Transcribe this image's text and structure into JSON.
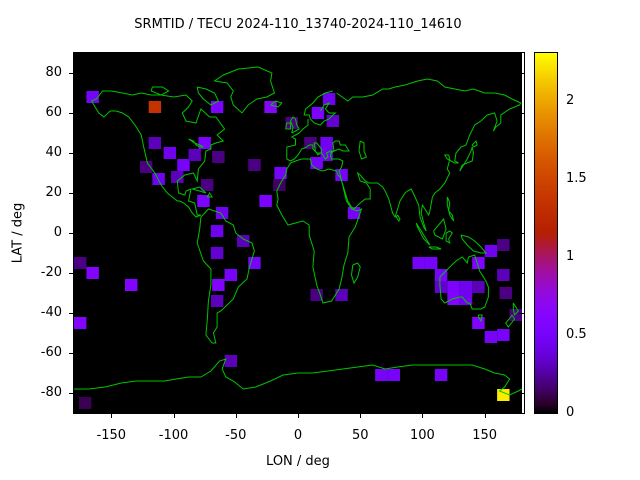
{
  "title": "SRMTID / TECU 2024-110_13740-2024-110_14610",
  "axes": {
    "x_label": "LON / deg",
    "y_label": "LAT / deg",
    "x_ticks": [
      -150,
      -100,
      -50,
      0,
      50,
      100,
      150
    ],
    "y_ticks": [
      80,
      60,
      40,
      20,
      0,
      -20,
      -40,
      -60,
      -80
    ]
  },
  "colorbar": {
    "tick_labels": [
      "0",
      "0.5",
      "1",
      "1.5",
      "2"
    ],
    "tick_values": [
      0,
      0.5,
      1,
      1.5,
      2
    ],
    "min": 0,
    "max": 2.31
  },
  "colors": {
    "page_bg": "#ffffff",
    "plot_bg": "#000000",
    "coastline": "#00c400",
    "text": "#000000"
  },
  "chart_data": {
    "type": "heatmap",
    "title": "SRMTID / TECU 2024-110_13740-2024-110_14610",
    "xlabel": "LON / deg",
    "ylabel": "LAT / deg",
    "xlim": [
      -180,
      180
    ],
    "ylim": [
      -90,
      90
    ],
    "grid": false,
    "legend_position": "right-colorbar",
    "colorbar_range": [
      0,
      2.31
    ],
    "palette": "gnuplot pm3d rgbformulae 7,5,15 (black-violet-red-orange-yellow)",
    "cell_size_deg": {
      "lon": 10,
      "lat": 6
    },
    "cells": [
      {
        "lon": -165,
        "lat": 68,
        "value": 0.5
      },
      {
        "lon": -115,
        "lat": 63,
        "value": 1.35
      },
      {
        "lon": -65,
        "lat": 63,
        "value": 0.55
      },
      {
        "lon": -22,
        "lat": 63,
        "value": 0.65
      },
      {
        "lon": -5,
        "lat": 55,
        "value": 0.2
      },
      {
        "lon": -115,
        "lat": 45,
        "value": 0.3
      },
      {
        "lon": -122,
        "lat": 33,
        "value": 0.2
      },
      {
        "lon": -103,
        "lat": 40,
        "value": 0.45
      },
      {
        "lon": -92,
        "lat": 34,
        "value": 0.5
      },
      {
        "lon": -75,
        "lat": 45,
        "value": 0.55
      },
      {
        "lon": -83,
        "lat": 39,
        "value": 0.3
      },
      {
        "lon": -64,
        "lat": 38,
        "value": 0.2
      },
      {
        "lon": -112,
        "lat": 27,
        "value": 0.45
      },
      {
        "lon": -97,
        "lat": 28,
        "value": 0.3
      },
      {
        "lon": -73,
        "lat": 24,
        "value": 0.2
      },
      {
        "lon": -76,
        "lat": 16,
        "value": 0.55
      },
      {
        "lon": -61,
        "lat": 10,
        "value": 0.45
      },
      {
        "lon": -35,
        "lat": 34,
        "value": 0.2
      },
      {
        "lon": -14,
        "lat": 30,
        "value": 0.5
      },
      {
        "lon": -15,
        "lat": 24,
        "value": 0.15
      },
      {
        "lon": -26,
        "lat": 16,
        "value": 0.55
      },
      {
        "lon": 25,
        "lat": 67,
        "value": 0.45
      },
      {
        "lon": 16,
        "lat": 60,
        "value": 0.55
      },
      {
        "lon": 28,
        "lat": 56,
        "value": 0.35
      },
      {
        "lon": 10,
        "lat": 45,
        "value": 0.2
      },
      {
        "lon": 23,
        "lat": 45,
        "value": 0.45
      },
      {
        "lon": 23,
        "lat": 39,
        "value": 0.45
      },
      {
        "lon": 15,
        "lat": 35,
        "value": 0.5
      },
      {
        "lon": 35,
        "lat": 29,
        "value": 0.5
      },
      {
        "lon": 45,
        "lat": 10,
        "value": 0.5
      },
      {
        "lon": -65,
        "lat": 1,
        "value": 0.45
      },
      {
        "lon": -44,
        "lat": -4,
        "value": 0.3
      },
      {
        "lon": -65,
        "lat": -10,
        "value": 0.35
      },
      {
        "lon": -35,
        "lat": -15,
        "value": 0.5
      },
      {
        "lon": -175,
        "lat": -15,
        "value": 0.2
      },
      {
        "lon": -165,
        "lat": -20,
        "value": 0.6
      },
      {
        "lon": -134,
        "lat": -26,
        "value": 0.6
      },
      {
        "lon": -54,
        "lat": -21,
        "value": 0.5
      },
      {
        "lon": -64,
        "lat": -26,
        "value": 0.6
      },
      {
        "lon": -65,
        "lat": -34,
        "value": 0.3
      },
      {
        "lon": -175,
        "lat": -45,
        "value": 0.6
      },
      {
        "lon": -54,
        "lat": -64,
        "value": 0.3
      },
      {
        "lon": -171,
        "lat": -85,
        "value": 0.12
      },
      {
        "lon": 15,
        "lat": -31,
        "value": 0.2
      },
      {
        "lon": 35,
        "lat": -31,
        "value": 0.3
      },
      {
        "lon": 97,
        "lat": -15,
        "value": 0.5
      },
      {
        "lon": 107,
        "lat": -15,
        "value": 0.5
      },
      {
        "lon": 115,
        "lat": -21,
        "value": 0.5
      },
      {
        "lon": 145,
        "lat": -15,
        "value": 0.6
      },
      {
        "lon": 155,
        "lat": -9,
        "value": 0.45
      },
      {
        "lon": 165,
        "lat": -6,
        "value": 0.2
      },
      {
        "lon": 115,
        "lat": -27,
        "value": 0.35
      },
      {
        "lon": 125,
        "lat": -27,
        "value": 0.55
      },
      {
        "lon": 135,
        "lat": -27,
        "value": 0.45
      },
      {
        "lon": 145,
        "lat": -27,
        "value": 0.3
      },
      {
        "lon": 125,
        "lat": -33,
        "value": 0.6
      },
      {
        "lon": 135,
        "lat": -33,
        "value": 0.45
      },
      {
        "lon": 165,
        "lat": -21,
        "value": 0.3
      },
      {
        "lon": 167,
        "lat": -30,
        "value": 0.2
      },
      {
        "lon": 145,
        "lat": -45,
        "value": 0.6
      },
      {
        "lon": 155,
        "lat": -52,
        "value": 0.5
      },
      {
        "lon": 165,
        "lat": -51,
        "value": 0.5
      },
      {
        "lon": 175,
        "lat": -41,
        "value": 0.2
      },
      {
        "lon": 67,
        "lat": -71,
        "value": 0.5
      },
      {
        "lon": 77,
        "lat": -71,
        "value": 0.5
      },
      {
        "lon": 115,
        "lat": -71,
        "value": 0.5
      },
      {
        "lon": 165,
        "lat": -81,
        "value": 2.25
      }
    ]
  }
}
